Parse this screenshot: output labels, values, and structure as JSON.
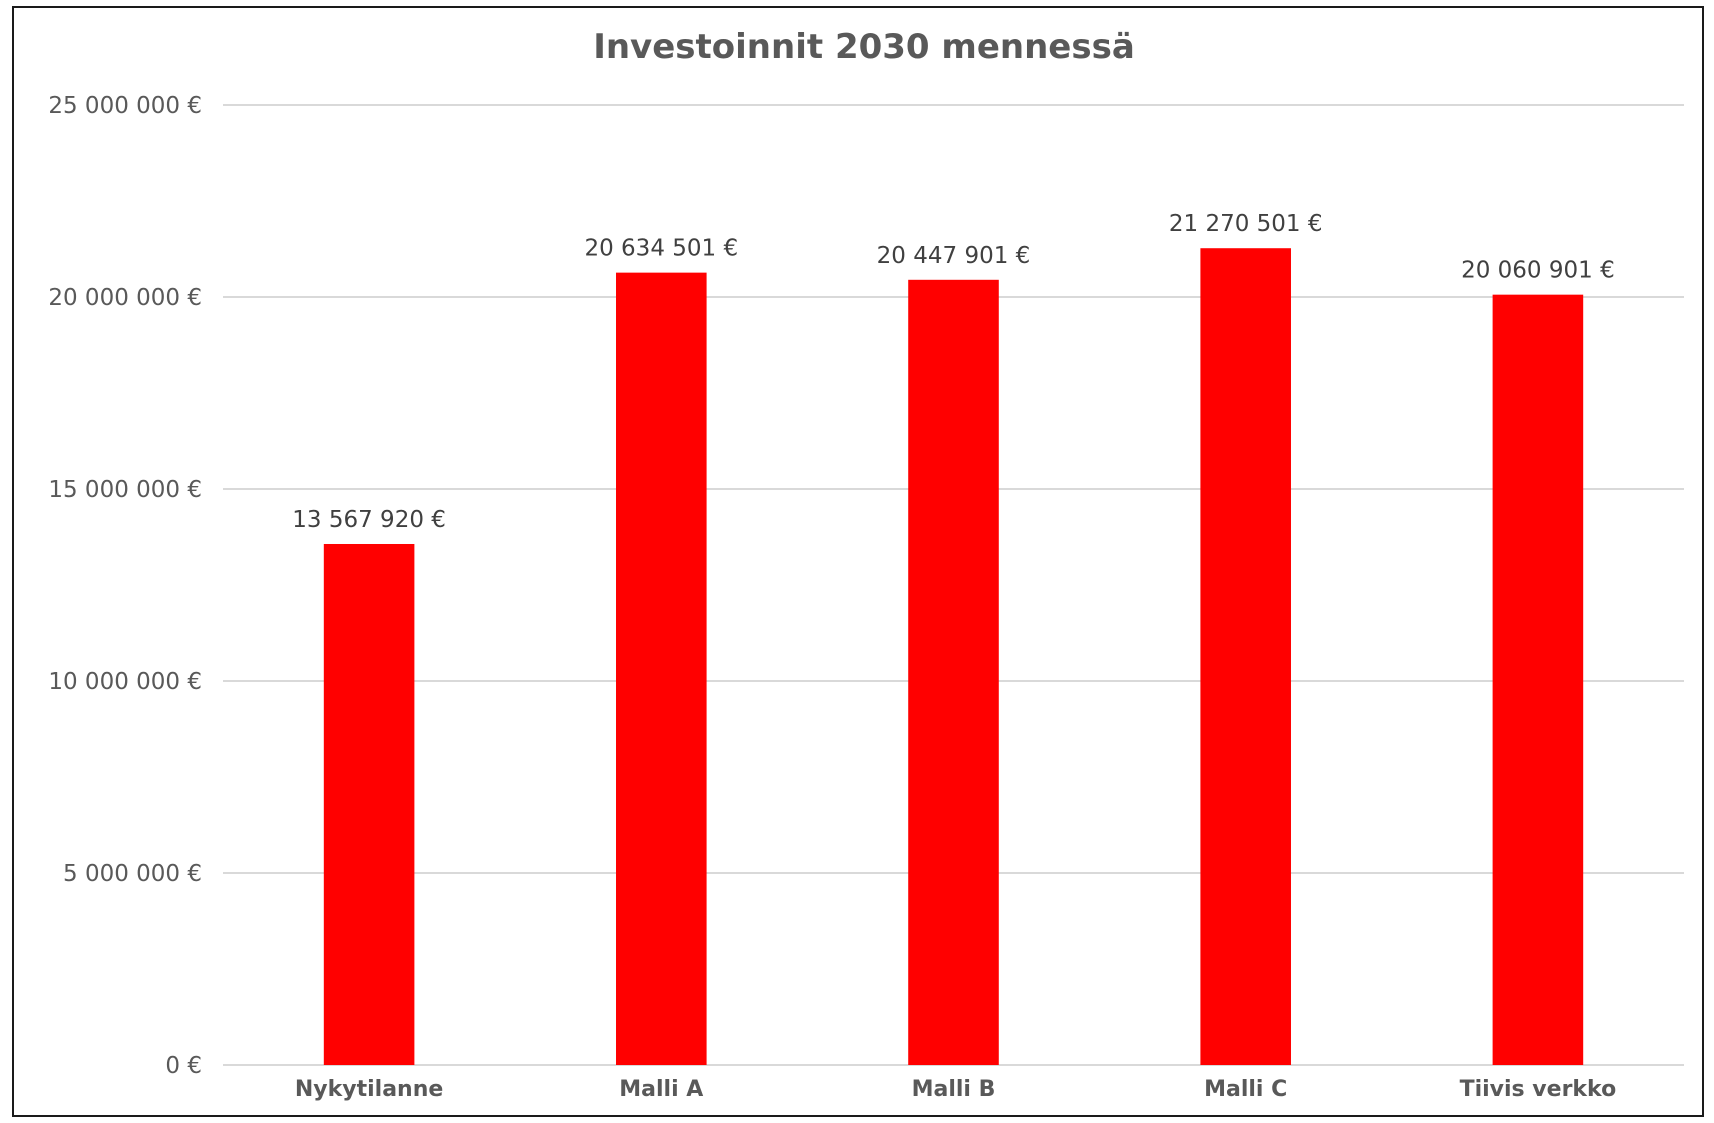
{
  "chart_data": {
    "type": "bar",
    "title": "Investoinnit 2030 mennessä",
    "xlabel": "",
    "ylabel": "",
    "categories": [
      "Nykytilanne",
      "Malli A",
      "Malli B",
      "Malli C",
      "Tiivis verkko"
    ],
    "values": [
      13567920,
      20634501,
      20447901,
      21270501,
      20060901
    ],
    "data_labels": [
      "13 567 920 €",
      "20 634 501 €",
      "20 447 901 €",
      "21 270 501 €",
      "20 060 901 €"
    ],
    "ylim": [
      0,
      25000000
    ],
    "y_ticks": [
      0,
      5000000,
      10000000,
      15000000,
      20000000,
      25000000
    ],
    "y_tick_labels": [
      "0 €",
      "5 000 000 €",
      "10 000 000 €",
      "15 000 000 €",
      "20 000 000 €",
      "25 000 000 €"
    ],
    "grid": true,
    "legend": "none",
    "bar_color": "#ff0000"
  }
}
